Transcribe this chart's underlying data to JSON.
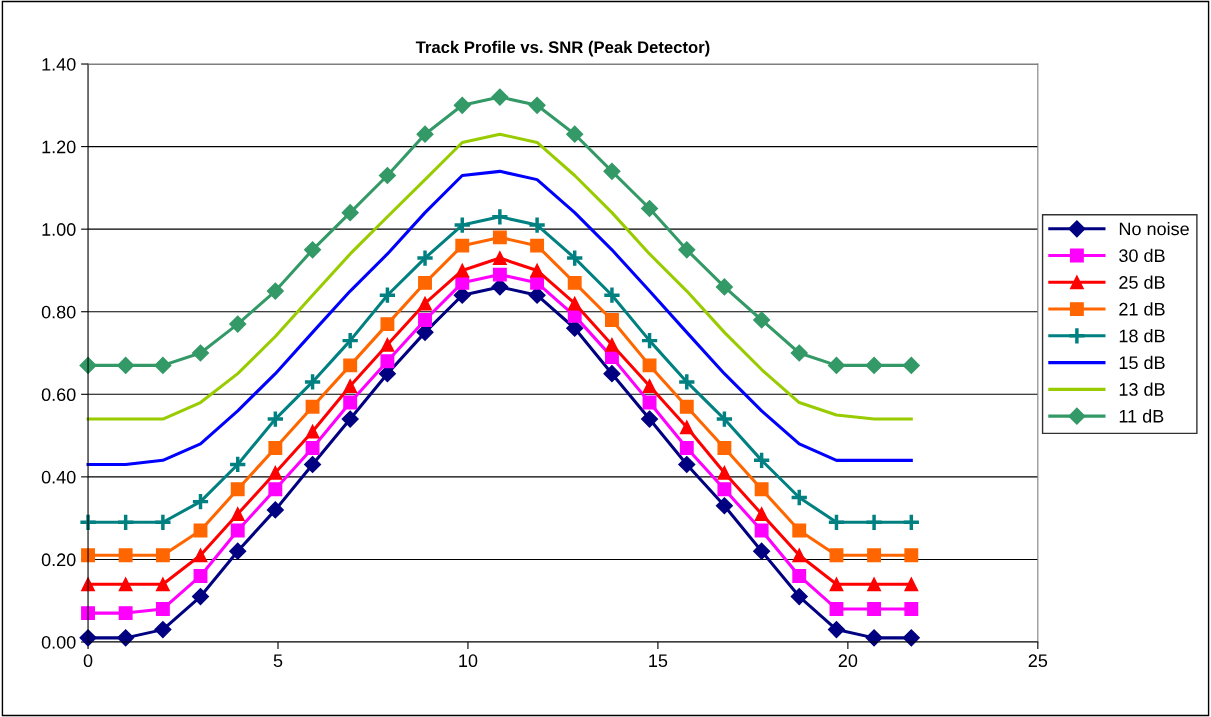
{
  "chart_data": {
    "type": "line",
    "title": "Track Profile vs. SNR (Peak Detector)",
    "x": [
      0,
      0.99,
      1.97,
      2.96,
      3.94,
      4.93,
      5.91,
      6.9,
      7.88,
      8.87,
      9.85,
      10.84,
      11.82,
      12.81,
      13.79,
      14.78,
      15.76,
      16.75,
      17.73,
      18.72,
      19.7,
      20.69,
      21.67
    ],
    "series": [
      {
        "name": "No noise",
        "color": "#000080",
        "marker": "diamond",
        "values": [
          0.01,
          0.01,
          0.03,
          0.11,
          0.22,
          0.32,
          0.43,
          0.54,
          0.65,
          0.75,
          0.84,
          0.86,
          0.84,
          0.76,
          0.65,
          0.54,
          0.43,
          0.33,
          0.22,
          0.11,
          0.03,
          0.01,
          0.01
        ]
      },
      {
        "name": "30 dB",
        "color": "#ff00ff",
        "marker": "square",
        "values": [
          0.07,
          0.07,
          0.08,
          0.16,
          0.27,
          0.37,
          0.47,
          0.58,
          0.68,
          0.78,
          0.87,
          0.89,
          0.87,
          0.79,
          0.69,
          0.58,
          0.47,
          0.37,
          0.27,
          0.16,
          0.08,
          0.08,
          0.08
        ]
      },
      {
        "name": "25 dB",
        "color": "#ff0000",
        "marker": "triangle",
        "values": [
          0.14,
          0.14,
          0.14,
          0.21,
          0.31,
          0.41,
          0.51,
          0.62,
          0.72,
          0.82,
          0.9,
          0.93,
          0.9,
          0.82,
          0.72,
          0.62,
          0.52,
          0.41,
          0.31,
          0.21,
          0.14,
          0.14,
          0.14
        ]
      },
      {
        "name": "21 dB",
        "color": "#ff6600",
        "marker": "square",
        "values": [
          0.21,
          0.21,
          0.21,
          0.27,
          0.37,
          0.47,
          0.57,
          0.67,
          0.77,
          0.87,
          0.96,
          0.98,
          0.96,
          0.87,
          0.78,
          0.67,
          0.57,
          0.47,
          0.37,
          0.27,
          0.21,
          0.21,
          0.21
        ]
      },
      {
        "name": "18 dB",
        "color": "#008080",
        "marker": "cross",
        "values": [
          0.29,
          0.29,
          0.29,
          0.34,
          0.43,
          0.54,
          0.63,
          0.73,
          0.84,
          0.93,
          1.01,
          1.03,
          1.01,
          0.93,
          0.84,
          0.73,
          0.63,
          0.54,
          0.44,
          0.35,
          0.29,
          0.29,
          0.29
        ]
      },
      {
        "name": "15 dB",
        "color": "#0000ff",
        "marker": "none",
        "values": [
          0.43,
          0.43,
          0.44,
          0.48,
          0.56,
          0.65,
          0.75,
          0.85,
          0.94,
          1.04,
          1.13,
          1.14,
          1.12,
          1.04,
          0.95,
          0.85,
          0.75,
          0.65,
          0.56,
          0.48,
          0.44,
          0.44,
          0.44
        ]
      },
      {
        "name": "13 dB",
        "color": "#99cc00",
        "marker": "none",
        "values": [
          0.54,
          0.54,
          0.54,
          0.58,
          0.65,
          0.74,
          0.84,
          0.94,
          1.03,
          1.12,
          1.21,
          1.23,
          1.21,
          1.13,
          1.04,
          0.94,
          0.85,
          0.75,
          0.66,
          0.58,
          0.55,
          0.54,
          0.54
        ]
      },
      {
        "name": "11 dB",
        "color": "#339966",
        "marker": "diamond",
        "values": [
          0.67,
          0.67,
          0.67,
          0.7,
          0.77,
          0.85,
          0.95,
          1.04,
          1.13,
          1.23,
          1.3,
          1.32,
          1.3,
          1.23,
          1.14,
          1.05,
          0.95,
          0.86,
          0.78,
          0.7,
          0.67,
          0.67,
          0.67
        ]
      }
    ],
    "xlim": [
      0,
      25
    ],
    "xticks": [
      0,
      5,
      10,
      15,
      20,
      25
    ],
    "ylim": [
      0,
      1.4
    ],
    "yticks": [
      {
        "value": 0,
        "label": "0.00"
      },
      {
        "value": 0.2,
        "label": "0.20"
      },
      {
        "value": 0.4,
        "label": "0.40"
      },
      {
        "value": 0.6,
        "label": "0.60"
      },
      {
        "value": 0.8,
        "label": "0.80"
      },
      {
        "value": 1.0,
        "label": "1.00"
      },
      {
        "value": 1.2,
        "label": "1.20"
      },
      {
        "value": 1.4,
        "label": "1.40"
      }
    ],
    "grid": "y",
    "legend": "right",
    "line_style": "solid"
  }
}
